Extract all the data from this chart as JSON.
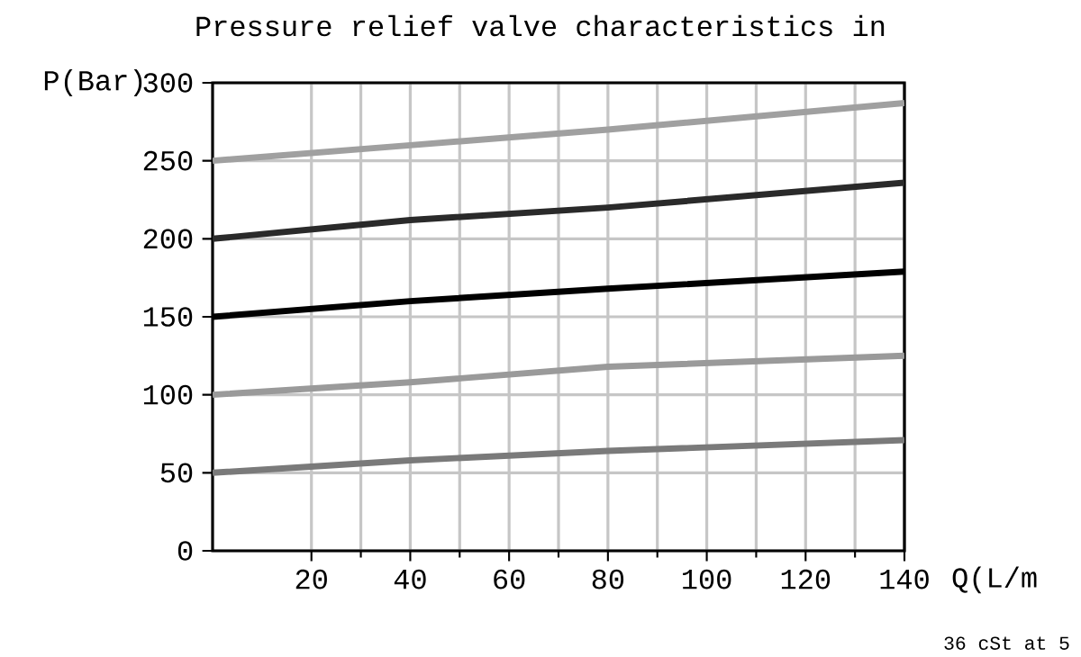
{
  "chart_data": {
    "type": "line",
    "title": "Pressure relief valve characteristics in",
    "xlabel": "Q(L/m",
    "ylabel": "P(Bar)",
    "annotations": [
      "36 cSt at 5"
    ],
    "xlim": [
      0,
      140
    ],
    "ylim": [
      0,
      300
    ],
    "xticks": [
      20,
      40,
      60,
      80,
      100,
      120,
      140
    ],
    "yticks": [
      0,
      50,
      100,
      150,
      200,
      250,
      300
    ],
    "grid": true,
    "marker": "none",
    "line_style": "solid",
    "x": [
      0,
      40,
      80,
      140
    ],
    "series": [
      {
        "color": "#a0a0a0",
        "values": [
          250,
          260,
          270,
          287
        ]
      },
      {
        "color": "#2a2a2a",
        "values": [
          200,
          212,
          220,
          236
        ]
      },
      {
        "color": "#000000",
        "values": [
          150,
          160,
          168,
          179
        ]
      },
      {
        "color": "#9a9a9a",
        "values": [
          100,
          108,
          118,
          125
        ]
      },
      {
        "color": "#7a7a7a",
        "values": [
          50,
          58,
          64,
          71
        ]
      }
    ]
  }
}
